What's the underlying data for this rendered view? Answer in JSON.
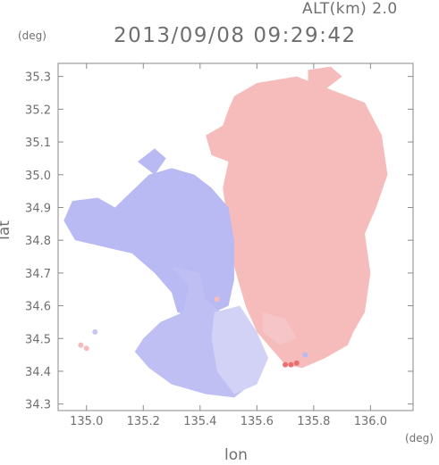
{
  "header": {
    "altitude_label": "ALT(km) 2.0",
    "timestamp": "2013/09/08 09:29:42"
  },
  "axes": {
    "x_unit": "(deg)",
    "y_unit": "(deg)",
    "xlabel": "lon",
    "ylabel": "lat"
  },
  "chart_data": {
    "type": "heatmap",
    "title": "2013/09/08 09:29:42",
    "subtitle": "ALT(km) 2.0",
    "xlabel": "lon",
    "ylabel": "lat",
    "xlim": [
      134.9,
      136.15
    ],
    "ylim": [
      34.28,
      35.34
    ],
    "x_ticks": [
      135.0,
      135.2,
      135.4,
      135.6,
      135.8,
      136.0
    ],
    "x_tick_labels": [
      "135.0",
      "135.2",
      "135.4",
      "135.6",
      "135.8",
      "136.0"
    ],
    "y_ticks": [
      34.3,
      34.4,
      34.5,
      34.6,
      34.7,
      34.8,
      34.9,
      35.0,
      35.1,
      35.2,
      35.3
    ],
    "y_tick_labels": [
      "34.3",
      "34.4",
      "34.5",
      "34.6",
      "34.7",
      "34.8",
      "34.9",
      "35.0",
      "35.1",
      "35.2",
      "35.3"
    ],
    "grid": false,
    "colors": {
      "negative": "#b9b9f3",
      "near_zero": "#f2f2fb",
      "positive": "#f6bcbc",
      "strong_positive": "#ec6f6f"
    },
    "regions": [
      {
        "polarity": "positive",
        "intensity": 0.3,
        "points": [
          [
            135.52,
            35.24
          ],
          [
            135.6,
            35.28
          ],
          [
            135.74,
            35.3
          ],
          [
            135.86,
            35.26
          ],
          [
            135.98,
            35.22
          ],
          [
            136.04,
            35.12
          ],
          [
            136.06,
            35.0
          ],
          [
            136.02,
            34.9
          ],
          [
            135.98,
            34.82
          ],
          [
            136.0,
            34.7
          ],
          [
            135.98,
            34.58
          ],
          [
            135.94,
            34.52
          ],
          [
            135.92,
            34.48
          ],
          [
            135.84,
            34.44
          ],
          [
            135.76,
            34.41
          ],
          [
            135.7,
            34.42
          ],
          [
            135.66,
            34.46
          ],
          [
            135.6,
            34.52
          ],
          [
            135.56,
            34.6
          ],
          [
            135.52,
            34.72
          ],
          [
            135.5,
            34.84
          ],
          [
            135.48,
            34.96
          ],
          [
            135.5,
            35.04
          ],
          [
            135.44,
            35.06
          ],
          [
            135.42,
            35.12
          ],
          [
            135.48,
            35.15
          ],
          [
            135.5,
            35.2
          ]
        ]
      },
      {
        "polarity": "positive",
        "intensity": 0.35,
        "points": [
          [
            135.78,
            35.32
          ],
          [
            135.86,
            35.33
          ],
          [
            135.9,
            35.3
          ],
          [
            135.84,
            35.26
          ],
          [
            135.78,
            35.28
          ]
        ]
      },
      {
        "polarity": "negative",
        "intensity": 0.45,
        "points": [
          [
            135.22,
            35.0
          ],
          [
            135.3,
            35.02
          ],
          [
            135.38,
            35.0
          ],
          [
            135.44,
            34.96
          ],
          [
            135.5,
            34.9
          ],
          [
            135.52,
            34.8
          ],
          [
            135.52,
            34.68
          ],
          [
            135.5,
            34.6
          ],
          [
            135.4,
            34.56
          ],
          [
            135.32,
            34.58
          ],
          [
            135.3,
            34.64
          ],
          [
            135.24,
            34.7
          ],
          [
            135.16,
            34.76
          ],
          [
            135.06,
            34.78
          ],
          [
            134.96,
            34.8
          ],
          [
            134.92,
            34.86
          ],
          [
            134.95,
            34.92
          ],
          [
            135.04,
            34.93
          ],
          [
            135.1,
            34.9
          ],
          [
            135.16,
            34.95
          ]
        ]
      },
      {
        "polarity": "negative",
        "intensity": 0.4,
        "points": [
          [
            135.2,
            34.74
          ],
          [
            135.3,
            34.72
          ],
          [
            135.36,
            34.66
          ],
          [
            135.34,
            34.58
          ],
          [
            135.26,
            34.55
          ],
          [
            135.2,
            34.5
          ],
          [
            135.17,
            34.46
          ],
          [
            135.22,
            34.41
          ],
          [
            135.3,
            34.36
          ],
          [
            135.42,
            34.33
          ],
          [
            135.52,
            34.32
          ],
          [
            135.58,
            34.36
          ],
          [
            135.6,
            34.44
          ],
          [
            135.56,
            34.5
          ],
          [
            135.5,
            34.56
          ],
          [
            135.42,
            34.62
          ],
          [
            135.4,
            34.7
          ]
        ]
      },
      {
        "polarity": "negative",
        "intensity": 0.25,
        "points": [
          [
            135.45,
            34.58
          ],
          [
            135.54,
            34.6
          ],
          [
            135.6,
            34.52
          ],
          [
            135.64,
            34.44
          ],
          [
            135.6,
            34.36
          ],
          [
            135.52,
            34.33
          ],
          [
            135.46,
            34.4
          ],
          [
            135.44,
            34.5
          ]
        ]
      },
      {
        "polarity": "negative",
        "intensity": 0.5,
        "points": [
          [
            135.18,
            35.04
          ],
          [
            135.24,
            35.08
          ],
          [
            135.28,
            35.05
          ],
          [
            135.24,
            35.0
          ]
        ]
      },
      {
        "polarity": "positive",
        "intensity": 0.25,
        "points": [
          [
            135.62,
            34.58
          ],
          [
            135.7,
            34.56
          ],
          [
            135.74,
            34.5
          ],
          [
            135.68,
            34.48
          ],
          [
            135.62,
            34.52
          ]
        ]
      }
    ],
    "spots": [
      {
        "lon": 135.72,
        "lat": 34.42,
        "value": 0.75
      },
      {
        "lon": 135.7,
        "lat": 34.42,
        "value": 0.7
      },
      {
        "lon": 135.74,
        "lat": 34.425,
        "value": 0.65
      },
      {
        "lon": 134.98,
        "lat": 34.48,
        "value": 0.3
      },
      {
        "lon": 135.03,
        "lat": 34.52,
        "value": -0.35
      },
      {
        "lon": 135.0,
        "lat": 34.47,
        "value": 0.35
      },
      {
        "lon": 135.46,
        "lat": 34.62,
        "value": 0.5
      },
      {
        "lon": 135.77,
        "lat": 34.45,
        "value": -0.6
      },
      {
        "lon": 135.57,
        "lat": 34.7,
        "value": 0.4
      }
    ]
  }
}
